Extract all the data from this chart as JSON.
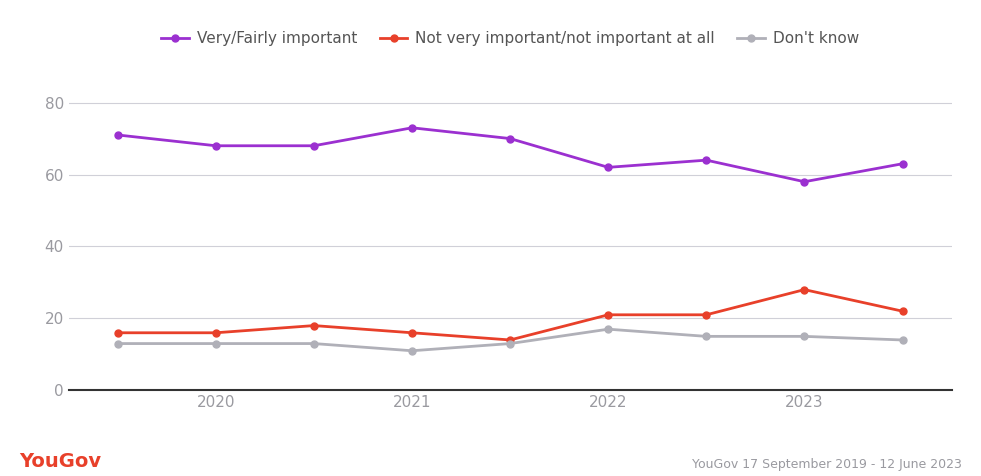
{
  "series": {
    "very_fairly_important": {
      "label": "Very/Fairly important",
      "color": "#9b30d0",
      "values": [
        71,
        68,
        68,
        73,
        70,
        62,
        64,
        58,
        63
      ]
    },
    "not_important": {
      "label": "Not very important/not important at all",
      "color": "#e8402a",
      "values": [
        16,
        16,
        18,
        16,
        14,
        21,
        21,
        28,
        22
      ]
    },
    "dont_know": {
      "label": "Don't know",
      "color": "#b0b0b8",
      "values": [
        13,
        13,
        13,
        11,
        13,
        17,
        15,
        15,
        14
      ]
    }
  },
  "x_positions": [
    0,
    1,
    2,
    3,
    4,
    5,
    6,
    7,
    8
  ],
  "x_tick_positions": [
    1,
    3,
    5,
    7
  ],
  "x_tick_labels": [
    "2020",
    "2021",
    "2022",
    "2023"
  ],
  "ylim": [
    0,
    90
  ],
  "yticks": [
    0,
    20,
    40,
    60,
    80
  ],
  "background_color": "#ffffff",
  "grid_color": "#d0d0d8",
  "footer_left": "YouGov",
  "footer_right": "YouGov 17 September 2019 - 12 June 2023",
  "footer_left_color": "#e8402a",
  "footer_right_color": "#9a9aa0",
  "line_width": 2.0,
  "marker": "o",
  "marker_size": 5
}
